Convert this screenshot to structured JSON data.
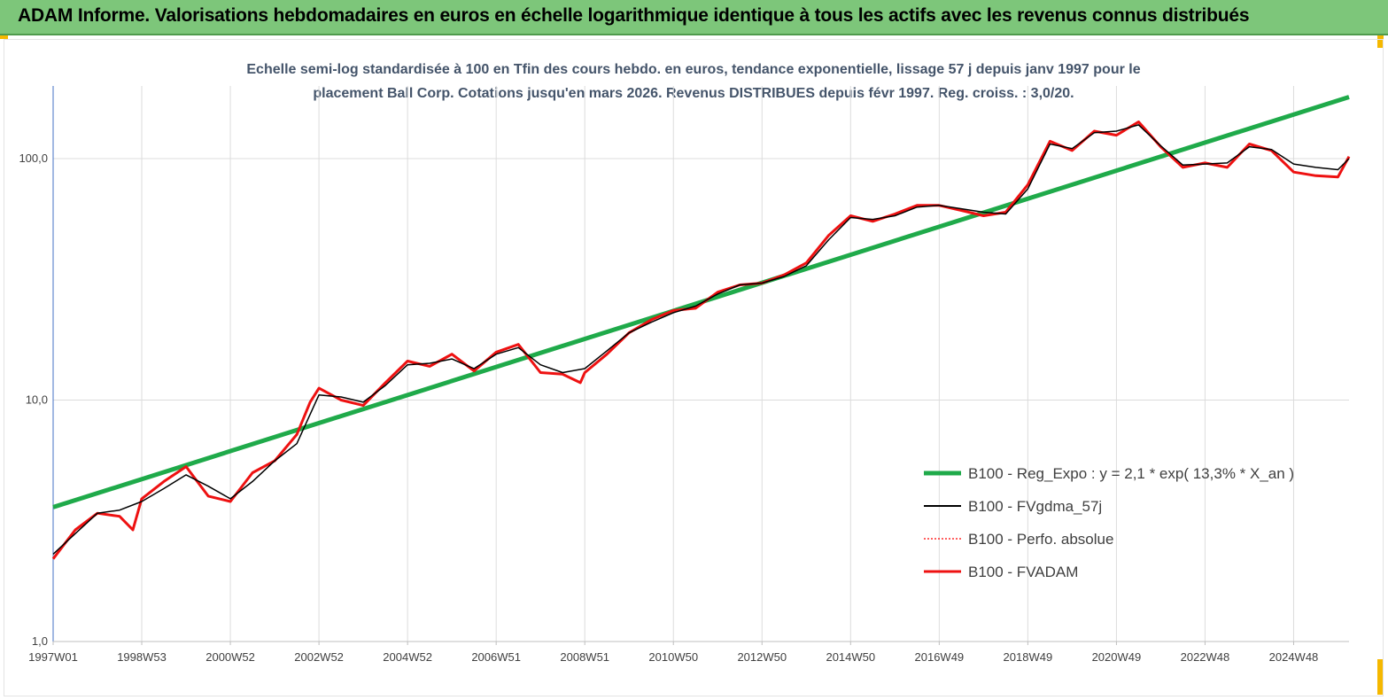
{
  "banner": {
    "title": "ADAM Informe. Valorisations hebdomadaires en euros en échelle logarithmique identique à tous les actifs avec les revenus connus distribués"
  },
  "colors": {
    "banner": "#7dc67a",
    "corner": "#f5b800",
    "reg_expo": "#1faa4a",
    "fvgdma": "#000000",
    "perfo": "#ff0000",
    "fvadam": "#ee1111"
  },
  "chart_data": {
    "type": "line",
    "scale": "log",
    "title_lines": [
      "Echelle semi-log standardisée à 100 en Tfin des cours hebdo. en euros, tendance exponentielle, lissage 57 j depuis janv 1997 pour le",
      "placement Ball Corp. Cotations jusqu'en mars 2026. Revenus DISTRIBUES depuis févr 1997. Reg. croiss. : 3,0/20."
    ],
    "ylim": [
      1,
      200
    ],
    "y_ticks": [
      {
        "value": 1,
        "label": "1,0"
      },
      {
        "value": 10,
        "label": "10,0"
      },
      {
        "value": 100,
        "label": "100,0"
      }
    ],
    "xlim": [
      1997.0,
      2026.25
    ],
    "x_ticks": [
      {
        "value": 1997.0,
        "label": "1997W01"
      },
      {
        "value": 1999.0,
        "label": "1998W53"
      },
      {
        "value": 2001.0,
        "label": "2000W52"
      },
      {
        "value": 2003.0,
        "label": "2002W52"
      },
      {
        "value": 2005.0,
        "label": "2004W52"
      },
      {
        "value": 2007.0,
        "label": "2006W51"
      },
      {
        "value": 2009.0,
        "label": "2008W51"
      },
      {
        "value": 2011.0,
        "label": "2010W50"
      },
      {
        "value": 2013.0,
        "label": "2012W50"
      },
      {
        "value": 2015.0,
        "label": "2014W50"
      },
      {
        "value": 2017.0,
        "label": "2016W49"
      },
      {
        "value": 2019.0,
        "label": "2018W49"
      },
      {
        "value": 2021.0,
        "label": "2020W49"
      },
      {
        "value": 2023.0,
        "label": "2022W48"
      },
      {
        "value": 2025.0,
        "label": "2024W48"
      }
    ],
    "grid": "vertical",
    "legend_position": "bottom-right",
    "series": [
      {
        "name": "B100 - Reg_Expo : y = 2,1 * exp( 13,3% *  X_an )",
        "style": "thick",
        "x": [
          1997.0,
          2026.25
        ],
        "y": [
          3.6,
          180
        ]
      },
      {
        "name": "B100 - FVgdma_57j",
        "style": "thin",
        "x": [
          1997.0,
          1997.5,
          1998.0,
          1998.5,
          1999.0,
          1999.5,
          2000.0,
          2000.5,
          2001.0,
          2001.5,
          2002.0,
          2002.5,
          2003.0,
          2003.5,
          2004.0,
          2004.5,
          2005.0,
          2005.5,
          2006.0,
          2006.5,
          2007.0,
          2007.5,
          2008.0,
          2008.5,
          2009.0,
          2009.5,
          2010.0,
          2010.5,
          2011.0,
          2011.5,
          2012.0,
          2012.5,
          2013.0,
          2013.5,
          2014.0,
          2014.5,
          2015.0,
          2015.5,
          2016.0,
          2016.5,
          2017.0,
          2017.5,
          2018.0,
          2018.5,
          2019.0,
          2019.5,
          2020.0,
          2020.5,
          2021.0,
          2021.5,
          2022.0,
          2022.5,
          2023.0,
          2023.5,
          2024.0,
          2024.5,
          2025.0,
          2025.5,
          2026.0,
          2026.25
        ],
        "y": [
          2.3,
          2.8,
          3.4,
          3.5,
          3.8,
          4.3,
          4.9,
          4.4,
          3.9,
          4.6,
          5.6,
          6.6,
          10.5,
          10.3,
          9.8,
          11.5,
          14.0,
          14.2,
          14.8,
          13.5,
          15.5,
          16.5,
          14.0,
          13.0,
          13.5,
          16.0,
          19.0,
          21.0,
          23.0,
          24.5,
          27.5,
          30.0,
          30.5,
          32.5,
          36.0,
          46.0,
          57.0,
          56.0,
          58.0,
          63.0,
          64.0,
          62.0,
          60.0,
          59.0,
          75.0,
          115.0,
          110.0,
          128.0,
          130.0,
          138.0,
          113.0,
          94.0,
          95.0,
          96.0,
          112.0,
          109.0,
          95.0,
          92.0,
          90.0,
          100.0
        ]
      },
      {
        "name": "B100 - Perfo. absolue",
        "style": "dotted",
        "x": [],
        "y": []
      },
      {
        "name": "B100 - FVADAM",
        "style": "thick",
        "x": [
          1997.0,
          1997.5,
          1998.0,
          1998.5,
          1998.8,
          1999.0,
          1999.5,
          2000.0,
          2000.5,
          2001.0,
          2001.5,
          2002.0,
          2002.5,
          2002.8,
          2003.0,
          2003.5,
          2004.0,
          2004.5,
          2005.0,
          2005.5,
          2006.0,
          2006.5,
          2007.0,
          2007.5,
          2008.0,
          2008.5,
          2008.9,
          2009.0,
          2009.5,
          2010.0,
          2010.5,
          2011.0,
          2011.5,
          2012.0,
          2012.5,
          2013.0,
          2013.5,
          2014.0,
          2014.5,
          2015.0,
          2015.5,
          2016.0,
          2016.5,
          2017.0,
          2017.5,
          2018.0,
          2018.5,
          2019.0,
          2019.5,
          2020.0,
          2020.5,
          2021.0,
          2021.5,
          2022.0,
          2022.5,
          2023.0,
          2023.5,
          2024.0,
          2024.5,
          2025.0,
          2025.5,
          2026.0,
          2026.25
        ],
        "y": [
          2.2,
          2.9,
          3.4,
          3.3,
          2.9,
          3.9,
          4.6,
          5.3,
          4.0,
          3.8,
          5.0,
          5.6,
          7.2,
          9.8,
          11.2,
          10.0,
          9.5,
          11.8,
          14.5,
          13.8,
          15.5,
          13.2,
          15.8,
          17.0,
          13.0,
          12.8,
          11.8,
          13.0,
          15.5,
          19.0,
          21.5,
          23.5,
          24.0,
          28.0,
          30.0,
          30.5,
          33.0,
          37.0,
          48.0,
          58.0,
          55.0,
          59.0,
          64.0,
          64.0,
          61.0,
          58.0,
          60.0,
          78.0,
          118.0,
          108.0,
          130.0,
          125.0,
          142.0,
          112.0,
          92.0,
          96.0,
          92.0,
          115.0,
          108.0,
          88.0,
          85.0,
          84.0,
          102.0
        ]
      }
    ]
  }
}
